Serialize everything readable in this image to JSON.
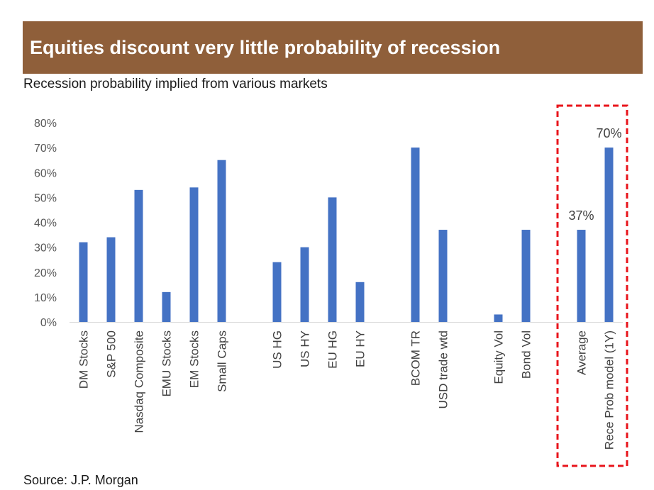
{
  "header": {
    "title": "Equities discount very little probability of recession",
    "banner_color": "#8f5f3a"
  },
  "subtitle": "Recession probability implied from various markets",
  "source": "Source: J.P. Morgan",
  "colors": {
    "bar": "#4472c4",
    "highlight_box": "#e8141b",
    "axis": "#d9d9d9"
  },
  "chart_data": {
    "type": "bar",
    "title": "Recession probability implied from various markets",
    "xlabel": "",
    "ylabel": "",
    "ylim": [
      0,
      80
    ],
    "y_ticks": [
      {
        "value": 0,
        "label": "0%"
      },
      {
        "value": 10,
        "label": "10%"
      },
      {
        "value": 20,
        "label": "20%"
      },
      {
        "value": 30,
        "label": "30%"
      },
      {
        "value": 40,
        "label": "40%"
      },
      {
        "value": 50,
        "label": "50%"
      },
      {
        "value": 60,
        "label": "60%"
      },
      {
        "value": 70,
        "label": "70%"
      },
      {
        "value": 80,
        "label": "80%"
      }
    ],
    "grid": false,
    "categories": [
      "DM Stocks",
      "S&P 500",
      "Nasdaq Composite",
      "EMU Stocks",
      "EM Stocks",
      "Small Caps",
      "",
      "US HG",
      "US HY",
      "EU HG",
      "EU HY",
      "",
      "BCOM TR",
      "USD trade wtd",
      "",
      "Equity Vol",
      "Bond Vol",
      "",
      "Average",
      "Rece Prob model (1Y)"
    ],
    "values": [
      32,
      34,
      53,
      12,
      54,
      65,
      null,
      24,
      30,
      50,
      16,
      null,
      70,
      37,
      null,
      3,
      37,
      null,
      37,
      70
    ],
    "data_labels": [
      {
        "category": "Average",
        "label": "37%"
      },
      {
        "category": "Rece Prob model (1Y)",
        "label": "70%"
      }
    ],
    "highlighted_categories": [
      "Average",
      "Rece Prob model (1Y)"
    ]
  }
}
